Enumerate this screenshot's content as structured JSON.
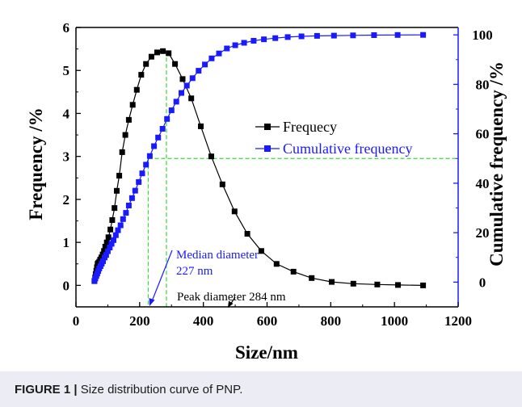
{
  "caption": {
    "label": "FIGURE 1 |",
    "text": "Size distribution curve of PNP."
  },
  "colors": {
    "frequency": "#000000",
    "cumulative": "#1a1aff",
    "guide": "#33dd33",
    "panel_background": "#ecedf4",
    "plot_background": "#ffffff"
  },
  "chart_data": {
    "type": "line",
    "xlabel": "Size/nm",
    "ylabel_left": "Frequency /%",
    "ylabel_right": "Cumulative frequency /%",
    "xlim": [
      0,
      1200
    ],
    "ylim_left": [
      -0.5,
      6
    ],
    "ylim_right": [
      -10,
      103
    ],
    "x_ticks": [
      0,
      200,
      400,
      600,
      800,
      1000,
      1200
    ],
    "y_ticks_left": [
      0,
      1,
      2,
      3,
      4,
      5,
      6
    ],
    "y_ticks_right": [
      0,
      20,
      40,
      60,
      80,
      100
    ],
    "grid": false,
    "legend_position": "right-center",
    "series": [
      {
        "name": "Frequecy",
        "axis": "left",
        "marker": "square",
        "x": [
          58,
          60,
          62,
          64,
          66,
          68,
          70,
          73,
          76,
          80,
          84,
          88,
          92,
          97,
          102,
          108,
          114,
          121,
          128,
          136,
          145,
          155,
          166,
          178,
          191,
          205,
          220,
          237,
          255,
          273,
          291,
          311,
          335,
          362,
          392,
          425,
          460,
          498,
          538,
          582,
          630,
          683,
          740,
          803,
          871,
          946,
          1011,
          1090
        ],
        "y": [
          0.1,
          0.18,
          0.26,
          0.34,
          0.42,
          0.5,
          0.52,
          0.55,
          0.6,
          0.65,
          0.72,
          0.8,
          0.9,
          1.0,
          1.12,
          1.3,
          1.52,
          1.8,
          2.2,
          2.55,
          3.1,
          3.5,
          3.85,
          4.2,
          4.55,
          4.9,
          5.15,
          5.32,
          5.42,
          5.45,
          5.4,
          5.15,
          4.8,
          4.35,
          3.7,
          3.0,
          2.35,
          1.72,
          1.2,
          0.8,
          0.5,
          0.32,
          0.17,
          0.08,
          0.04,
          0.02,
          0.01,
          0.0
        ]
      },
      {
        "name": "Cumulative frequency",
        "axis": "right",
        "marker": "square",
        "x": [
          58,
          61,
          64,
          67,
          70,
          73,
          77,
          81,
          85,
          90,
          95,
          100,
          106,
          112,
          118,
          125,
          132,
          140,
          148,
          157,
          166,
          176,
          186,
          197,
          208,
          220,
          232,
          245,
          258,
          272,
          286,
          300,
          315,
          331,
          348,
          366,
          385,
          405,
          426,
          449,
          474,
          500,
          528,
          558,
          590,
          626,
          665,
          708,
          757,
          810,
          870,
          936,
          1010,
          1090
        ],
        "y": [
          0.5,
          1.5,
          2.5,
          3.5,
          4.5,
          5.5,
          6.5,
          7.5,
          8.5,
          10,
          11,
          12.5,
          14,
          15.5,
          17,
          19,
          21,
          23,
          25.5,
          28,
          31,
          34,
          37,
          40.5,
          44,
          47.5,
          51,
          55,
          58.5,
          62,
          66,
          69.5,
          73,
          76.5,
          79.5,
          82.5,
          85.5,
          88,
          90.5,
          92.5,
          94.5,
          95.8,
          96.8,
          97.6,
          98.2,
          98.7,
          99.1,
          99.4,
          99.6,
          99.7,
          99.8,
          99.9,
          99.95,
          100
        ]
      }
    ],
    "annotations": [
      {
        "text": "Median diameter",
        "text2": "227 nm",
        "x": 227,
        "color": "blue"
      },
      {
        "text": "Peak diameter 284 nm",
        "x": 284,
        "color": "black"
      }
    ],
    "guides": {
      "median_x": 227,
      "peak_x": 284,
      "half_cumulative": 50
    }
  }
}
